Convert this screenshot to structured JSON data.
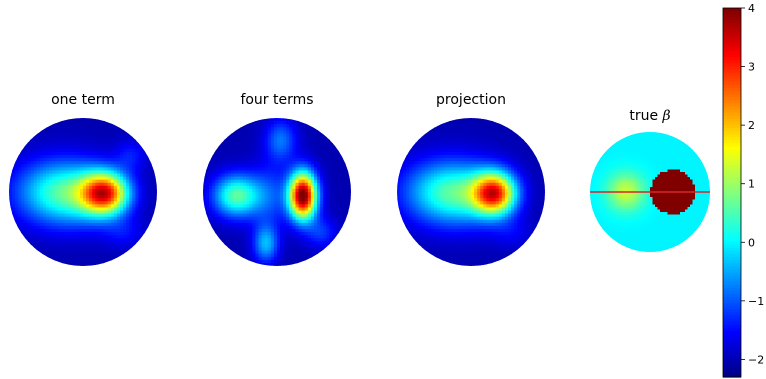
{
  "chart_data": {
    "type": "heatmap",
    "colormap": "jet",
    "panels": [
      {
        "title": "one term",
        "blobs": [
          {
            "cx": 0.3,
            "cy": 0.02,
            "sx": 0.22,
            "sy": 0.2,
            "amp": 4.6
          },
          {
            "cx": -0.1,
            "cy": 0.02,
            "sx": 0.35,
            "sy": 0.3,
            "amp": 2.0
          },
          {
            "cx": -0.55,
            "cy": 0.0,
            "sx": 0.35,
            "sy": 0.3,
            "amp": 1.2
          },
          {
            "cx": 0.55,
            "cy": 0.55,
            "sx": 0.2,
            "sy": 0.15,
            "amp": 0.5
          },
          {
            "cx": 0.65,
            "cy": -0.5,
            "sx": 0.15,
            "sy": 0.15,
            "amp": 0.6
          }
        ],
        "base": -2.0
      },
      {
        "title": "four terms",
        "blobs": [
          {
            "cx": 0.35,
            "cy": 0.05,
            "sx": 0.13,
            "sy": 0.22,
            "amp": 6.2
          },
          {
            "cx": -0.55,
            "cy": 0.05,
            "sx": 0.22,
            "sy": 0.2,
            "amp": 2.6
          },
          {
            "cx": -0.15,
            "cy": 0.7,
            "sx": 0.12,
            "sy": 0.18,
            "amp": 1.6
          },
          {
            "cx": 0.05,
            "cy": -0.7,
            "sx": 0.15,
            "sy": 0.2,
            "amp": 1.2
          },
          {
            "cx": -0.1,
            "cy": 0.05,
            "sx": 0.2,
            "sy": 0.3,
            "amp": 0.9
          },
          {
            "cx": 0.6,
            "cy": 0.55,
            "sx": 0.15,
            "sy": 0.15,
            "amp": 0.8
          }
        ],
        "base": -2.0
      },
      {
        "title": "projection",
        "blobs": [
          {
            "cx": 0.32,
            "cy": 0.02,
            "sx": 0.2,
            "sy": 0.2,
            "amp": 4.6
          },
          {
            "cx": -0.1,
            "cy": 0.02,
            "sx": 0.35,
            "sy": 0.3,
            "amp": 2.0
          },
          {
            "cx": -0.55,
            "cy": 0.0,
            "sx": 0.35,
            "sy": 0.3,
            "amp": 1.2
          },
          {
            "cx": 0.55,
            "cy": 0.55,
            "sx": 0.2,
            "sy": 0.15,
            "amp": 0.4
          }
        ],
        "base": -2.0
      },
      {
        "title_text": "true ",
        "title_symbol": "β",
        "true_beta": {
          "background": 0.0,
          "disk": {
            "cx": 0.38,
            "cy": 0.0,
            "r": 0.37,
            "value": 4.0
          },
          "bump": {
            "cx": -0.4,
            "cy": 0.0,
            "sx": 0.22,
            "sy": 0.22,
            "amp": 1.3
          },
          "line_value_y": 0.0,
          "line_color": "#d62728"
        }
      }
    ],
    "colorbar": {
      "min": -2.3,
      "max": 4.0,
      "ticks": [
        4,
        3,
        2,
        1,
        0,
        -1,
        -2
      ],
      "tick_labels": [
        "4",
        "3",
        "2",
        "1",
        "0",
        "−1",
        "−2"
      ]
    }
  }
}
